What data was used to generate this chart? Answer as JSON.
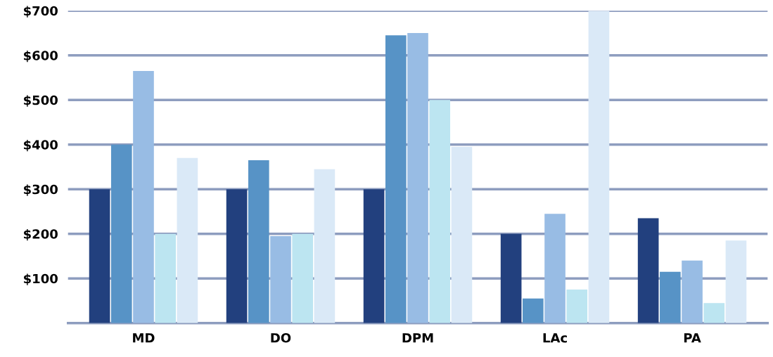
{
  "chart_data": {
    "type": "bar",
    "categories": [
      "MD",
      "DO",
      "DPM",
      "LAc",
      "PA"
    ],
    "series": [
      {
        "color": "#22407e",
        "values": [
          300,
          300,
          300,
          200,
          235
        ]
      },
      {
        "color": "#5793c6",
        "values": [
          400,
          365,
          645,
          55,
          115
        ]
      },
      {
        "color": "#98bce4",
        "values": [
          565,
          195,
          650,
          245,
          140
        ]
      },
      {
        "color": "#bce5f1",
        "values": [
          200,
          200,
          500,
          75,
          45
        ]
      },
      {
        "color": "#dae9f7",
        "values": [
          370,
          345,
          395,
          700,
          185
        ]
      }
    ],
    "ylim": [
      0,
      700
    ],
    "yticks": [
      {
        "value": 100,
        "label": "$100"
      },
      {
        "value": 200,
        "label": "$200"
      },
      {
        "value": 300,
        "label": "$300"
      },
      {
        "value": 400,
        "label": "$400"
      },
      {
        "value": 500,
        "label": "$500"
      },
      {
        "value": 600,
        "label": "$600"
      },
      {
        "value": 700,
        "label": "$700"
      }
    ],
    "grid": "y",
    "legend": false
  }
}
